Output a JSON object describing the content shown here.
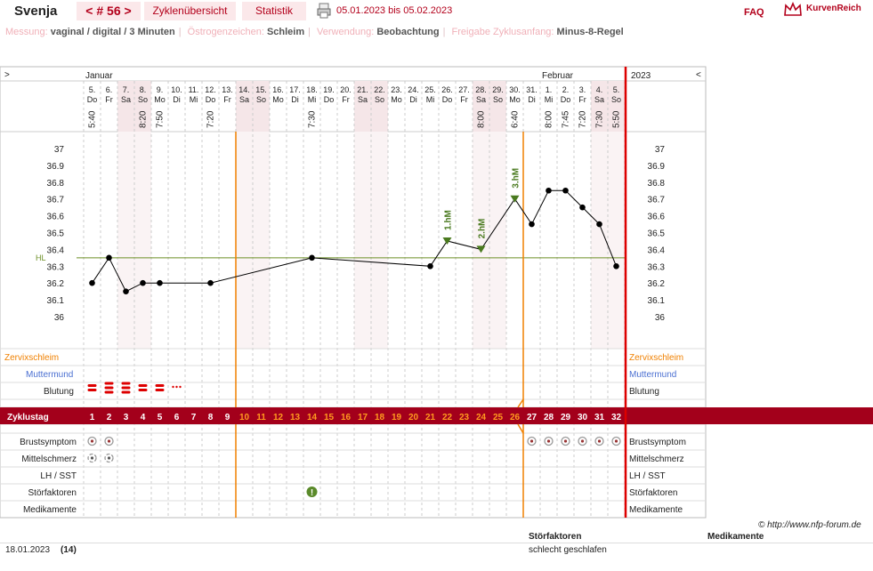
{
  "header": {
    "name": "Svenja",
    "cycle_label": "< # 56 >",
    "tab_overview": "Zyklenübersicht",
    "tab_stats": "Statistik",
    "date_range": "05.01.2023 bis 05.02.2023",
    "faq": "FAQ",
    "logo": "KurvenReich"
  },
  "meta": {
    "messung_label": "Messung:",
    "messung_value": "vaginal / digital / 3 Minuten",
    "oestrogen_label": "Östrogenzeichen:",
    "oestrogen_value": "Schleim",
    "verwendung_label": "Verwendung:",
    "verwendung_value": "Beobachtung",
    "freigabe_label": "Freigabe Zyklusanfang:",
    "freigabe_value": "Minus-8-Regel"
  },
  "chart_data": {
    "type": "line",
    "months": [
      {
        "label": "Januar",
        "day_index": 0
      },
      {
        "label": "Februar",
        "day_index": 27
      }
    ],
    "year": "2023",
    "nav_left": ">",
    "nav_right": "<",
    "days": [
      {
        "date": "5.",
        "wd": "Do",
        "time": "5:40",
        "weekend": false
      },
      {
        "date": "6.",
        "wd": "Fr",
        "time": "",
        "weekend": false
      },
      {
        "date": "7.",
        "wd": "Sa",
        "time": "",
        "weekend": true
      },
      {
        "date": "8.",
        "wd": "So",
        "time": "8:20",
        "weekend": true
      },
      {
        "date": "9.",
        "wd": "Mo",
        "time": "7:50",
        "weekend": false
      },
      {
        "date": "10.",
        "wd": "Di",
        "time": "",
        "weekend": false
      },
      {
        "date": "11.",
        "wd": "Mi",
        "time": "",
        "weekend": false
      },
      {
        "date": "12.",
        "wd": "Do",
        "time": "7:20",
        "weekend": false
      },
      {
        "date": "13.",
        "wd": "Fr",
        "time": "",
        "weekend": false
      },
      {
        "date": "14.",
        "wd": "Sa",
        "time": "",
        "weekend": true
      },
      {
        "date": "15.",
        "wd": "So",
        "time": "",
        "weekend": true
      },
      {
        "date": "16.",
        "wd": "Mo",
        "time": "",
        "weekend": false
      },
      {
        "date": "17.",
        "wd": "Di",
        "time": "",
        "weekend": false
      },
      {
        "date": "18.",
        "wd": "Mi",
        "time": "7:30",
        "weekend": false
      },
      {
        "date": "19.",
        "wd": "Do",
        "time": "",
        "weekend": false
      },
      {
        "date": "20.",
        "wd": "Fr",
        "time": "",
        "weekend": false
      },
      {
        "date": "21.",
        "wd": "Sa",
        "time": "",
        "weekend": true
      },
      {
        "date": "22.",
        "wd": "So",
        "time": "",
        "weekend": true
      },
      {
        "date": "23.",
        "wd": "Mo",
        "time": "",
        "weekend": false
      },
      {
        "date": "24.",
        "wd": "Di",
        "time": "",
        "weekend": false
      },
      {
        "date": "25.",
        "wd": "Mi",
        "time": "",
        "weekend": false
      },
      {
        "date": "26.",
        "wd": "Do",
        "time": "",
        "weekend": false
      },
      {
        "date": "27.",
        "wd": "Fr",
        "time": "",
        "weekend": false
      },
      {
        "date": "28.",
        "wd": "Sa",
        "time": "8:00",
        "weekend": true
      },
      {
        "date": "29.",
        "wd": "So",
        "time": "",
        "weekend": true
      },
      {
        "date": "30.",
        "wd": "Mo",
        "time": "6:40",
        "weekend": false
      },
      {
        "date": "31.",
        "wd": "Di",
        "time": "",
        "weekend": false
      },
      {
        "date": "1.",
        "wd": "Mi",
        "time": "8:00",
        "weekend": false
      },
      {
        "date": "2.",
        "wd": "Do",
        "time": "7:45",
        "weekend": false
      },
      {
        "date": "3.",
        "wd": "Fr",
        "time": "7:20",
        "weekend": false
      },
      {
        "date": "4.",
        "wd": "Sa",
        "time": "7:30",
        "weekend": true
      },
      {
        "date": "5.",
        "wd": "So",
        "time": "5:50",
        "weekend": true
      }
    ],
    "y_ticks": [
      "37",
      "36.9",
      "36.8",
      "36.7",
      "36.6",
      "36.5",
      "36.4",
      "36.3",
      "36.2",
      "36.1",
      "36"
    ],
    "ylim": [
      36.0,
      37.0
    ],
    "temperatures": [
      {
        "day": 1,
        "value": 36.2
      },
      {
        "day": 2,
        "value": 36.35
      },
      {
        "day": 3,
        "value": 36.15
      },
      {
        "day": 4,
        "value": 36.2
      },
      {
        "day": 5,
        "value": 36.2
      },
      {
        "day": 8,
        "value": 36.2
      },
      {
        "day": 14,
        "value": 36.35
      },
      {
        "day": 21,
        "value": 36.3
      },
      {
        "day": 22,
        "value": 36.45
      },
      {
        "day": 24,
        "value": 36.4
      },
      {
        "day": 26,
        "value": 36.7
      },
      {
        "day": 27,
        "value": 36.55
      },
      {
        "day": 28,
        "value": 36.75
      },
      {
        "day": 29,
        "value": 36.75
      },
      {
        "day": 30,
        "value": 36.65
      },
      {
        "day": 31,
        "value": 36.55
      },
      {
        "day": 32,
        "value": 36.3
      }
    ],
    "hl_label": "HL",
    "hl_value": 36.35,
    "hm_markers": [
      {
        "day": 22,
        "label": "1.hM"
      },
      {
        "day": 24,
        "label": "2.hM"
      },
      {
        "day": 26,
        "label": "3.hM"
      }
    ],
    "orange_lines_after_day": [
      9,
      26
    ],
    "rows_top": {
      "zervix": "Zervixschleim",
      "muttermund": "Muttermund",
      "blutung": "Blutung"
    },
    "bleeding": [
      {
        "day": 1,
        "level": 2
      },
      {
        "day": 2,
        "level": 3
      },
      {
        "day": 3,
        "level": 3
      },
      {
        "day": 4,
        "level": 2
      },
      {
        "day": 5,
        "level": 2
      },
      {
        "day": 6,
        "level": 1
      }
    ],
    "zyklustag_label": "Zyklustag",
    "rows_bottom": {
      "brust": "Brustsymptom",
      "mittel": "Mittelschmerz",
      "lh": "LH / SST",
      "stoer": "Störfaktoren",
      "medi": "Medikamente"
    },
    "brust_days": [
      1,
      2,
      27,
      28,
      29,
      30,
      31,
      32
    ],
    "mittel_days": [
      1,
      2
    ],
    "stoer_days": [
      14
    ]
  },
  "footer": {
    "copyright": "© http://www.nfp-forum.de",
    "col_stoer": "Störfaktoren",
    "col_medi": "Medikamente",
    "entry_date": "18.01.2023",
    "entry_day": "(14)",
    "entry_text": "schlecht geschlafen"
  },
  "colors": {
    "brand": "#b3001b",
    "orange": "#f08000",
    "green": "#4a7a1f",
    "weekend": "#f5e6e8",
    "blue": "#4a6fd1"
  }
}
